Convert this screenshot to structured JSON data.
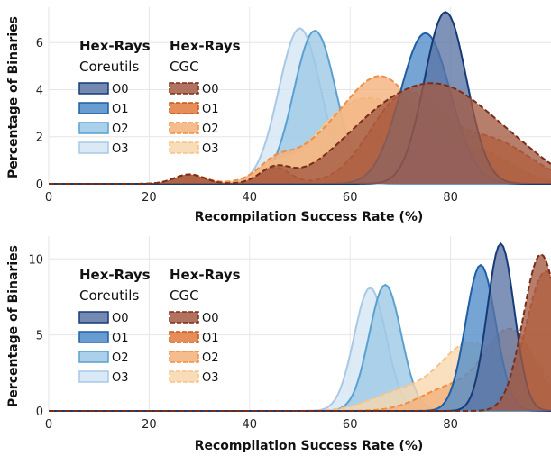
{
  "chart_data": [
    {
      "type": "area",
      "ylabel": "Percentage of Binaries",
      "xlabel": "Recompilation Success Rate (%)",
      "xlim": [
        0,
        100
      ],
      "ylim": [
        0,
        7.5
      ],
      "xticks": [
        "0",
        "20",
        "40",
        "60",
        "80"
      ],
      "yticks": [
        "0",
        "2",
        "4",
        "6"
      ],
      "grid": true,
      "legend": {
        "placement": "top-left",
        "groups": [
          {
            "title": "Hex-Rays",
            "subtitle": "Coreutils",
            "entries": [
              "O0",
              "O1",
              "O2",
              "O3"
            ]
          },
          {
            "title": "Hex-Rays",
            "subtitle": "CGC",
            "entries": [
              "O0",
              "O1",
              "O2",
              "O3"
            ]
          }
        ]
      },
      "series": [
        {
          "group": "Coreutils",
          "name": "O0",
          "peaks": [
            [
              79,
              7.3,
              4.2
            ]
          ]
        },
        {
          "group": "Coreutils",
          "name": "O1",
          "peaks": [
            [
              75,
              6.4,
              5.0
            ]
          ]
        },
        {
          "group": "Coreutils",
          "name": "O2",
          "peaks": [
            [
              53,
              6.5,
              4.2
            ]
          ]
        },
        {
          "group": "Coreutils",
          "name": "O3",
          "peaks": [
            [
              50,
              6.6,
              4.2
            ]
          ]
        },
        {
          "group": "CGC",
          "name": "O0",
          "peaks": [
            [
              28,
              0.4,
              3
            ],
            [
              45,
              0.6,
              3
            ],
            [
              80,
              3.6,
              10
            ],
            [
              65,
              2.0,
              9
            ],
            [
              95,
              0.5,
              6
            ]
          ]
        },
        {
          "group": "CGC",
          "name": "O1",
          "peaks": [
            [
              28,
              0.4,
              3
            ],
            [
              45,
              0.7,
              3
            ],
            [
              71,
              3.7,
              7
            ],
            [
              88,
              1.8,
              8
            ]
          ]
        },
        {
          "group": "CGC",
          "name": "O2",
          "peaks": [
            [
              28,
              0.4,
              3
            ],
            [
              45,
              0.5,
              3
            ],
            [
              67,
              4.0,
              7
            ],
            [
              85,
              1.4,
              7
            ],
            [
              55,
              1.5,
              8
            ]
          ]
        },
        {
          "group": "CGC",
          "name": "O3",
          "peaks": [
            [
              28,
              0.4,
              3
            ],
            [
              44,
              0.5,
              3
            ],
            [
              62,
              3.4,
              9
            ],
            [
              78,
              1.5,
              8
            ]
          ]
        }
      ]
    },
    {
      "type": "area",
      "ylabel": "Percentage of Binaries",
      "xlabel": "Recompilation Success Rate (%)",
      "xlim": [
        0,
        100
      ],
      "ylim": [
        0,
        11.5
      ],
      "xticks": [
        "0",
        "20",
        "40",
        "60",
        "80"
      ],
      "yticks": [
        "0",
        "5",
        "10"
      ],
      "grid": true,
      "legend": {
        "placement": "top-left",
        "groups": [
          {
            "title": "Hex-Rays",
            "subtitle": "Coreutils",
            "entries": [
              "O0",
              "O1",
              "O2",
              "O3"
            ]
          },
          {
            "title": "Hex-Rays",
            "subtitle": "CGC",
            "entries": [
              "O0",
              "O1",
              "O2",
              "O3"
            ]
          }
        ]
      },
      "series": [
        {
          "group": "Coreutils",
          "name": "O0",
          "peaks": [
            [
              90,
              11.0,
              2.7
            ]
          ]
        },
        {
          "group": "Coreutils",
          "name": "O1",
          "peaks": [
            [
              86,
              9.6,
              3.0
            ]
          ]
        },
        {
          "group": "Coreutils",
          "name": "O2",
          "peaks": [
            [
              67,
              8.3,
              3.2
            ]
          ]
        },
        {
          "group": "Coreutils",
          "name": "O3",
          "peaks": [
            [
              64,
              8.1,
              3.2
            ]
          ]
        },
        {
          "group": "CGC",
          "name": "O0",
          "peaks": [
            [
              98,
              10.3,
              3.5
            ]
          ]
        },
        {
          "group": "CGC",
          "name": "O1",
          "peaks": [
            [
              99,
              9.2,
              4.0
            ]
          ]
        },
        {
          "group": "CGC",
          "name": "O2",
          "peaks": [
            [
              92,
              5.2,
              5.0
            ],
            [
              80,
              1.5,
              6
            ]
          ]
        },
        {
          "group": "CGC",
          "name": "O3",
          "peaks": [
            [
              84,
              4.4,
              6.0
            ],
            [
              96,
              3.0,
              4.0
            ],
            [
              70,
              1.2,
              6
            ]
          ]
        }
      ]
    }
  ],
  "colors": {
    "Coreutils": {
      "O0": {
        "fill": "#5b74a5",
        "stroke": "#163a78"
      },
      "O1": {
        "fill": "#4f8cc9",
        "stroke": "#1f5fa6"
      },
      "O2": {
        "fill": "#9cc8e6",
        "stroke": "#5aa1d2"
      },
      "O3": {
        "fill": "#d4e5f4",
        "stroke": "#a8c8e6"
      }
    },
    "CGC": {
      "O0": {
        "fill": "#a35a43",
        "stroke": "#7a2e18"
      },
      "O1": {
        "fill": "#e07a3c",
        "stroke": "#c9541c"
      },
      "O2": {
        "fill": "#f3b07a",
        "stroke": "#ee8f45"
      },
      "O3": {
        "fill": "#f8d7ad",
        "stroke": "#f5c48a"
      }
    }
  }
}
